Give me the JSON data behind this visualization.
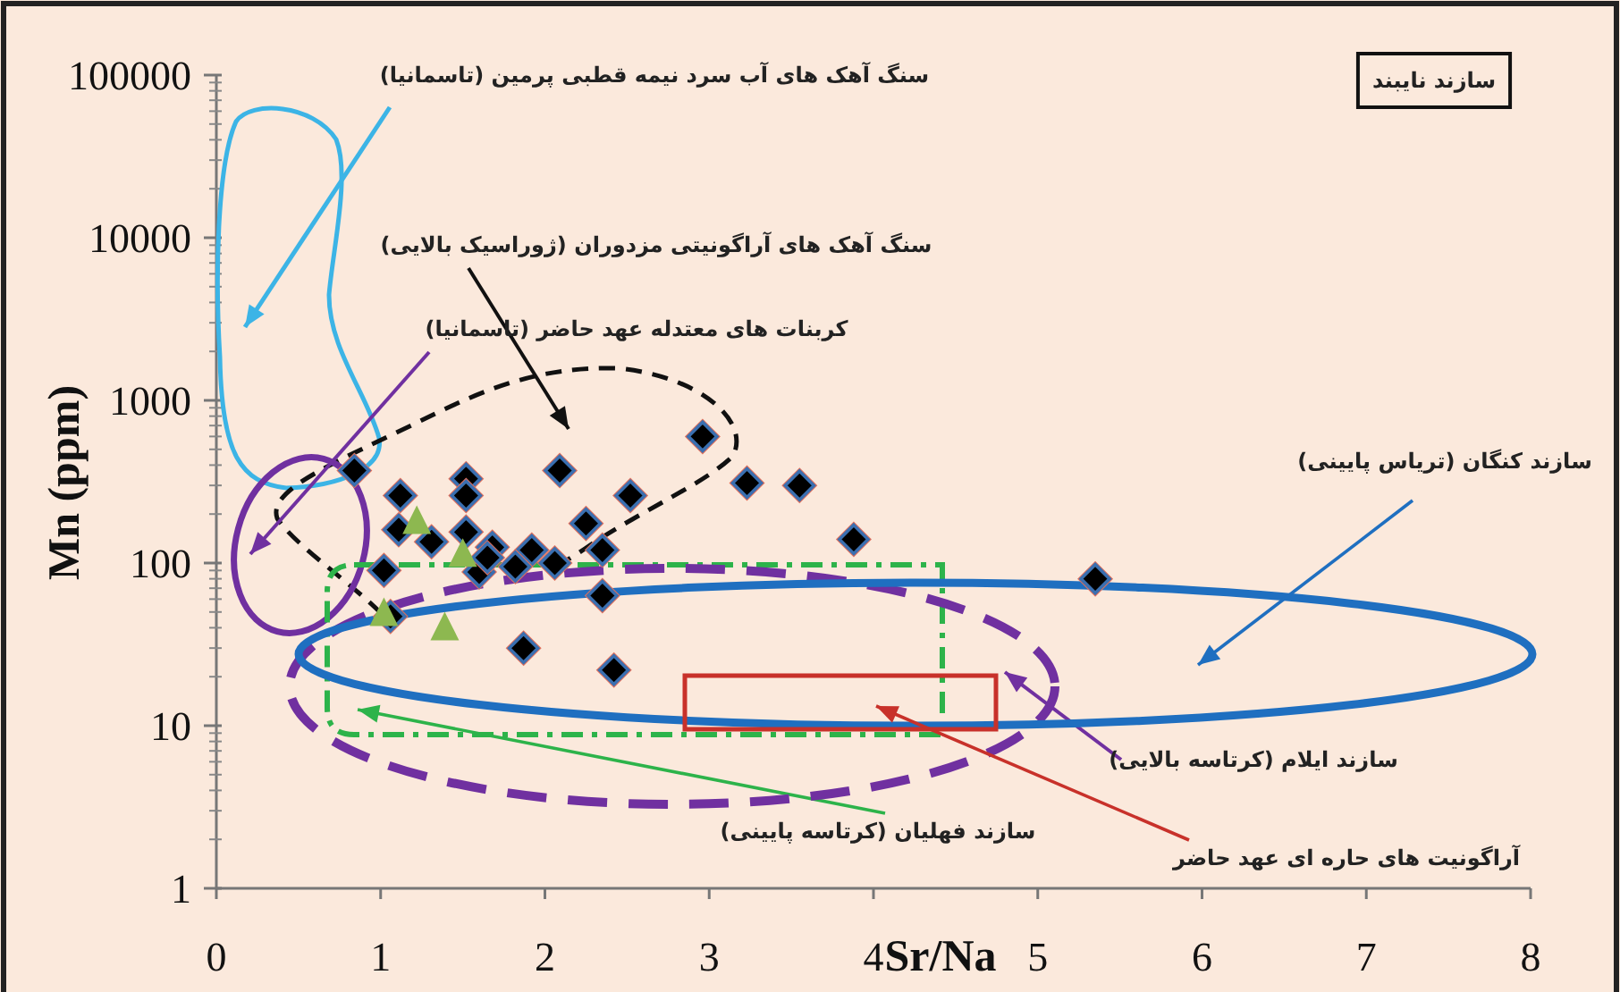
{
  "chart_data": {
    "type": "scatter",
    "xlabel": "Sr/Na",
    "ylabel": "Mn (ppm)",
    "xlim": [
      0,
      8
    ],
    "xticks": [
      0,
      1,
      2,
      3,
      4,
      5,
      6,
      7,
      8
    ],
    "ylim": [
      1,
      100000
    ],
    "yticks": [
      1,
      10,
      100,
      1000,
      10000,
      100000
    ],
    "log": "y",
    "series": [
      {
        "color": "#000000",
        "marker": "diamond",
        "x": [
          0.84,
          1.12,
          1.52,
          1.52,
          2.09,
          2.52,
          1.11,
          1.31,
          1.52,
          1.68,
          1.92,
          2.06,
          2.25,
          2.35,
          1.6,
          1.65,
          1.82,
          1.02,
          2.35,
          1.06,
          1.87,
          2.42,
          2.96,
          3.23,
          3.55,
          3.88,
          5.35
        ],
        "values": [
          370,
          260,
          330,
          260,
          370,
          260,
          160,
          135,
          155,
          125,
          120,
          100,
          175,
          120,
          88,
          108,
          95,
          90,
          63,
          47,
          30,
          22,
          600,
          310,
          300,
          140,
          80
        ]
      },
      {
        "color": "#8db850",
        "marker": "triangle",
        "x": [
          1.22,
          1.5,
          1.39,
          1.02
        ],
        "values": [
          180,
          113,
          40,
          49
        ]
      }
    ],
    "annotations": [
      "سنگ آهک های آب سرد نیمه قطبی پرمین (تاسمانیا)",
      "سنگ آهک های آراگونیتی مزدوران (ژوراسیک بالایی)",
      "کربنات های معتدله عهد حاضر (تاسمانیا)",
      "سازند نایبند",
      "سازند کنگان (تریاس پایینی)",
      "سازند ایلام (کرتاسه بالایی)",
      "سازند فهلیان (کرتاسه پایینی)",
      "آراگونیت های حاره ای عهد حاضر"
    ]
  }
}
